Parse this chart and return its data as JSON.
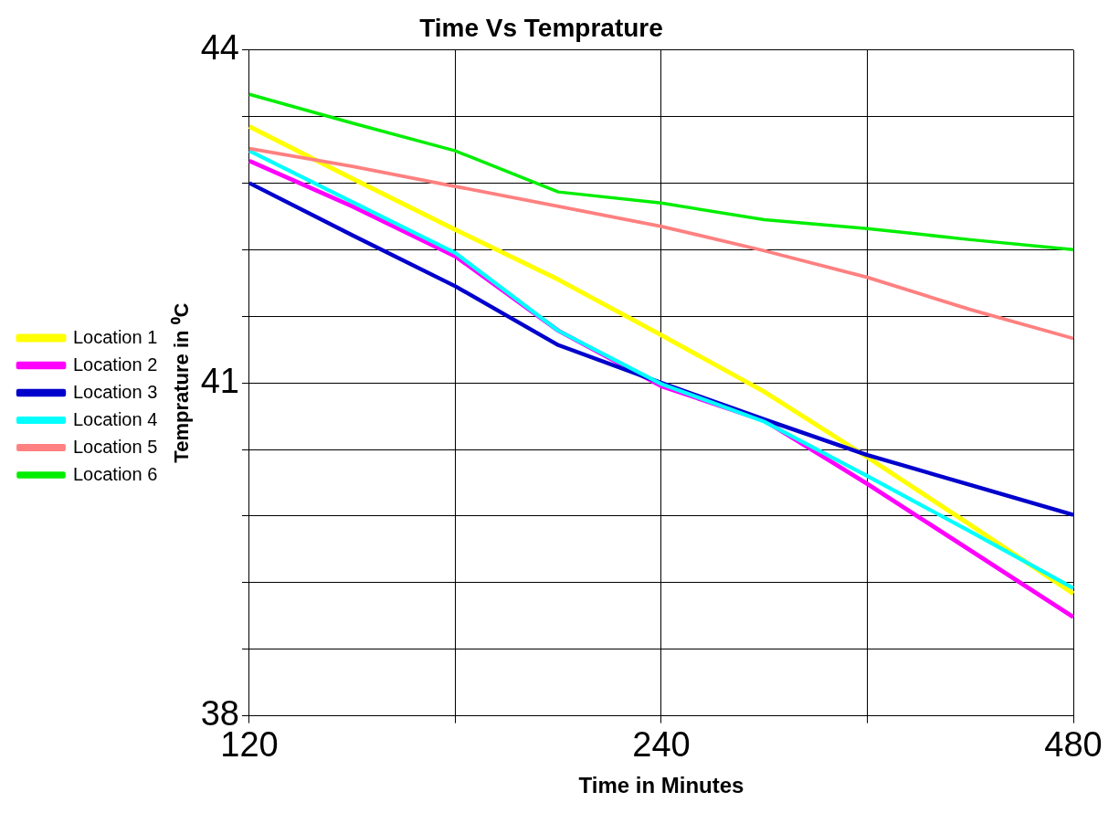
{
  "chart_data": {
    "type": "line",
    "title": "Time Vs Temprature",
    "xlabel": "Time in Minutes",
    "ylabel": "Temprature in ⁰C",
    "categories": [
      "120",
      null,
      null,
      null,
      "240",
      null,
      null,
      null,
      "480"
    ],
    "series": [
      {
        "name": "Location 1",
        "color": "#ffff00",
        "values": [
          43.31,
          42.84,
          42.38,
          41.93,
          41.43,
          40.92,
          40.33,
          39.72,
          39.1
        ]
      },
      {
        "name": "Location 2",
        "color": "#ff00ff",
        "values": [
          43.0,
          42.59,
          42.14,
          41.47,
          40.97,
          40.66,
          40.09,
          39.49,
          38.89
        ]
      },
      {
        "name": "Location 3",
        "color": "#0000cc",
        "values": [
          42.8,
          42.33,
          41.87,
          41.34,
          41.0,
          40.67,
          40.35,
          40.08,
          39.81
        ]
      },
      {
        "name": "Location 4",
        "color": "#00ffff",
        "values": [
          43.09,
          42.63,
          42.17,
          41.47,
          40.99,
          40.65,
          40.16,
          39.66,
          39.15
        ]
      },
      {
        "name": "Location 5",
        "color": "#ff8080",
        "values": [
          43.11,
          42.95,
          42.77,
          42.59,
          42.41,
          42.19,
          41.95,
          41.66,
          41.4
        ]
      },
      {
        "name": "Location 6",
        "color": "#00ee00",
        "values": [
          43.6,
          43.34,
          43.09,
          42.72,
          42.62,
          42.47,
          42.39,
          42.29,
          42.2
        ]
      }
    ],
    "ylim": [
      38,
      44
    ],
    "yticks": [
      38,
      {
        "value": 38.6,
        "label": null
      },
      {
        "value": 39.2,
        "label": null
      },
      {
        "value": 39.8,
        "label": null
      },
      {
        "value": 40.4,
        "label": null
      },
      41,
      {
        "value": 41.6,
        "label": null
      },
      {
        "value": 42.2,
        "label": null
      },
      {
        "value": 42.8,
        "label": null
      },
      {
        "value": 43.4,
        "label": null
      },
      44
    ],
    "grid": true,
    "legend": "left",
    "marker": "none",
    "line_style": "solid"
  }
}
